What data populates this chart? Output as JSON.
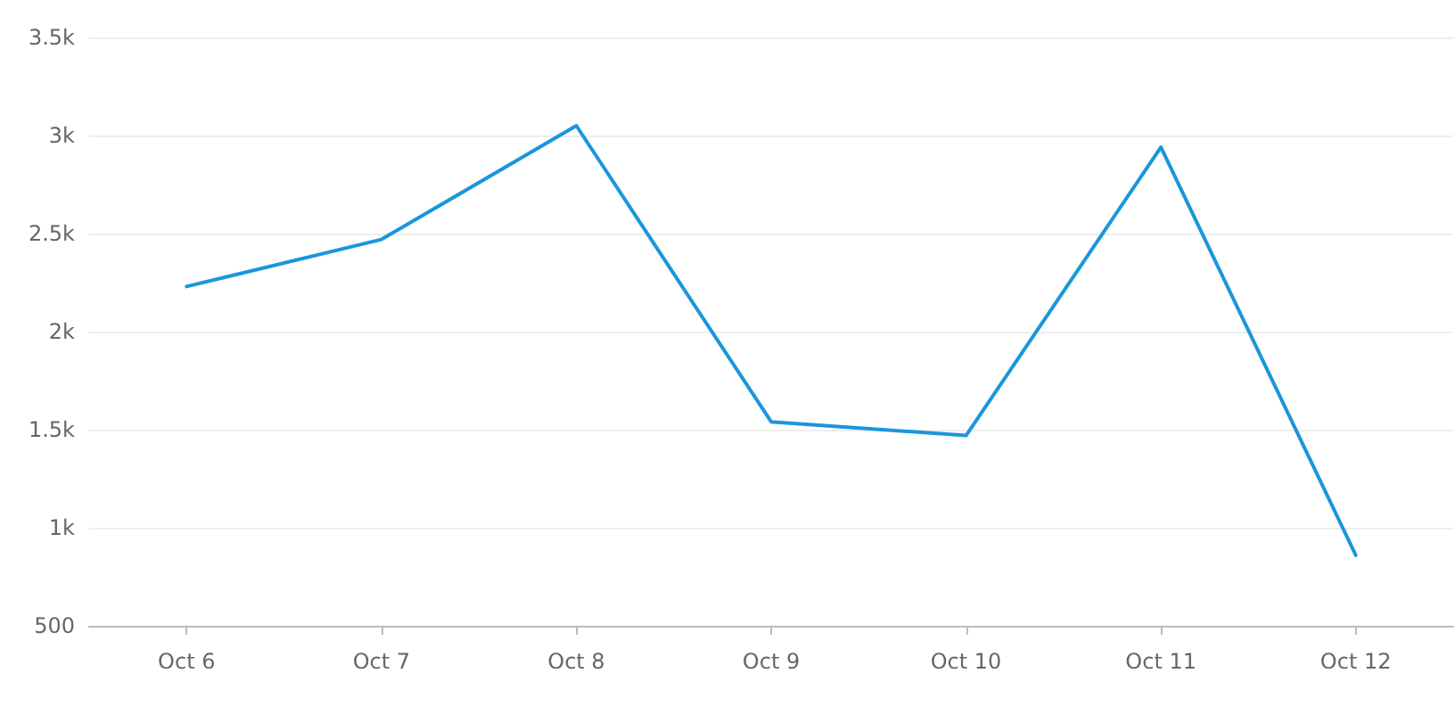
{
  "chart_data": {
    "type": "line",
    "categories": [
      "Oct 6",
      "Oct 7",
      "Oct 8",
      "Oct 9",
      "Oct 10",
      "Oct 11",
      "Oct 12"
    ],
    "series": [
      {
        "color": "#1a96dc",
        "values": [
          2230,
          2470,
          3050,
          1540,
          1470,
          2940,
          860
        ]
      }
    ],
    "ylim": [
      500,
      3500
    ],
    "yticks": [
      500,
      {
        "value": 1000,
        "label": "1k"
      },
      {
        "value": 1500,
        "label": "1.5k"
      },
      {
        "value": 2000,
        "label": "2k"
      },
      {
        "value": 2500,
        "label": "2.5k"
      },
      {
        "value": 3000,
        "label": "3k"
      },
      {
        "value": 3500,
        "label": "3.5k"
      }
    ],
    "grid": "y",
    "marker": "none",
    "line_style": "solid"
  }
}
